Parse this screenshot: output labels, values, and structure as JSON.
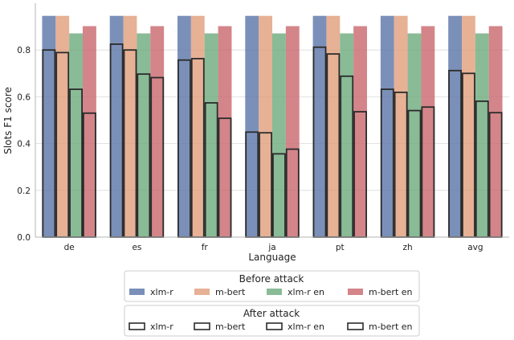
{
  "chart_data": {
    "type": "bar",
    "xlabel": "Language",
    "ylabel": "Slots F1 score",
    "ylim": [
      0,
      1.0
    ],
    "yticks": [
      "0.0",
      "0.2",
      "0.4",
      "0.6",
      "0.8"
    ],
    "grid": "horizontal",
    "categories": [
      "de",
      "es",
      "fr",
      "ja",
      "pt",
      "zh",
      "avg"
    ],
    "before_attack": {
      "title": "Before attack",
      "series": [
        {
          "name": "xlm-r",
          "color": "#5a74a8",
          "values": [
            0.946,
            0.946,
            0.946,
            0.946,
            0.946,
            0.946,
            0.946
          ]
        },
        {
          "name": "m-bert",
          "color": "#e09d7a",
          "values": [
            0.946,
            0.946,
            0.946,
            0.946,
            0.946,
            0.946,
            0.946
          ]
        },
        {
          "name": "xlm-r en",
          "color": "#6baa7c",
          "values": [
            0.871,
            0.871,
            0.871,
            0.871,
            0.871,
            0.871,
            0.871
          ]
        },
        {
          "name": "m-bert en",
          "color": "#c8666b",
          "values": [
            0.902,
            0.902,
            0.902,
            0.902,
            0.902,
            0.902,
            0.902
          ]
        }
      ]
    },
    "after_attack": {
      "title": "After attack",
      "series": [
        {
          "name": "xlm-r",
          "values": [
            0.8,
            0.825,
            0.757,
            0.449,
            0.812,
            0.632,
            0.712
          ]
        },
        {
          "name": "m-bert",
          "values": [
            0.789,
            0.8,
            0.763,
            0.446,
            0.783,
            0.619,
            0.7
          ]
        },
        {
          "name": "xlm-r en",
          "values": [
            0.632,
            0.697,
            0.574,
            0.356,
            0.688,
            0.541,
            0.581
          ]
        },
        {
          "name": "m-bert en",
          "values": [
            0.53,
            0.682,
            0.508,
            0.376,
            0.536,
            0.556,
            0.532
          ]
        }
      ]
    },
    "legend_placement": "bottom"
  }
}
